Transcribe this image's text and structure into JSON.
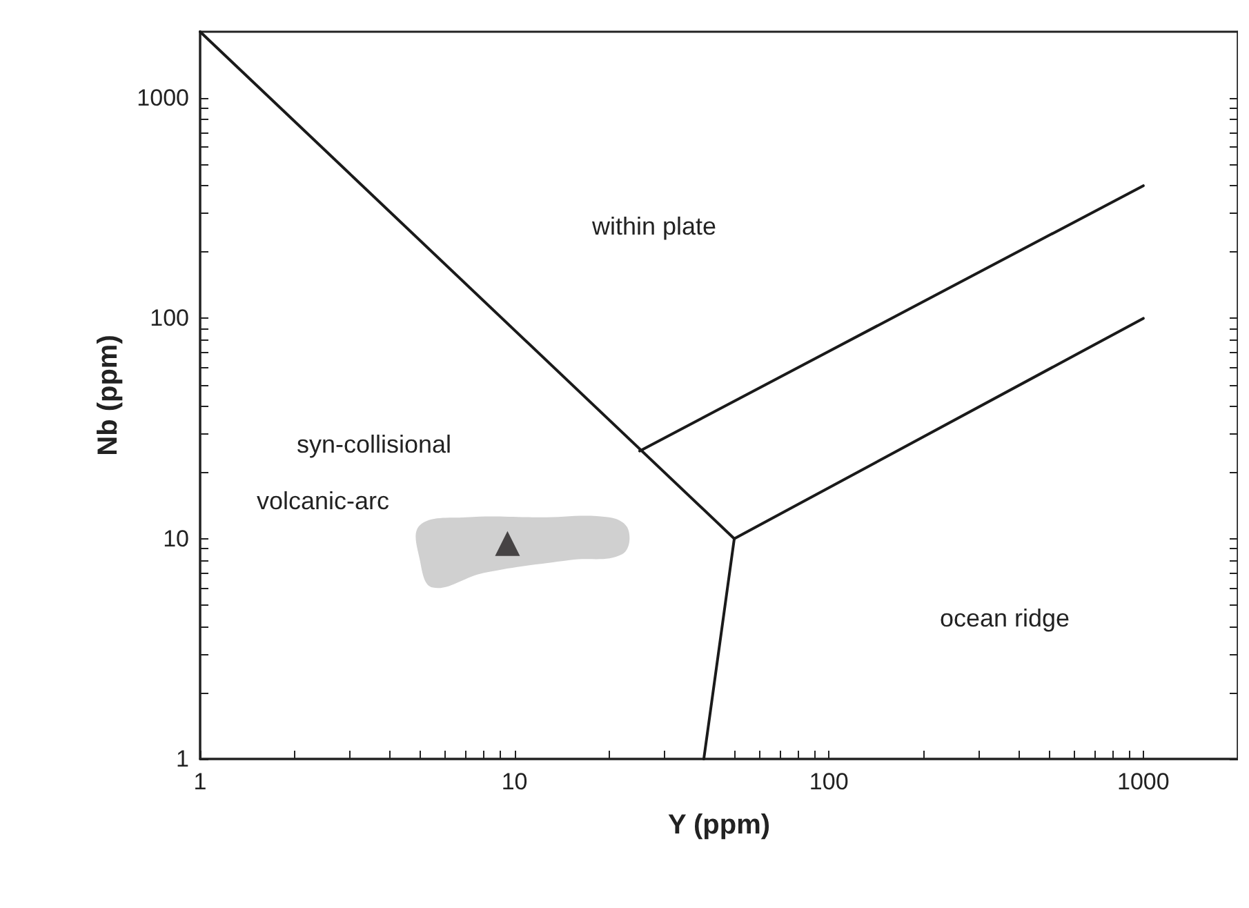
{
  "chart_data": {
    "type": "scatter",
    "xlabel": "Y (ppm)",
    "ylabel": "Nb (ppm)",
    "log": "xy",
    "grid": false,
    "xlim": [
      1,
      2000
    ],
    "ylim": [
      1,
      2000
    ],
    "xticks": [
      1,
      {
        "value": 2,
        "label": null
      },
      {
        "value": 3,
        "label": null
      },
      {
        "value": 4,
        "label": null
      },
      {
        "value": 5,
        "label": null
      },
      {
        "value": 6,
        "label": null
      },
      {
        "value": 7,
        "label": null
      },
      {
        "value": 8,
        "label": null
      },
      {
        "value": 9,
        "label": null
      },
      10,
      {
        "value": 20,
        "label": null
      },
      {
        "value": 30,
        "label": null
      },
      {
        "value": 40,
        "label": null
      },
      {
        "value": 50,
        "label": null
      },
      {
        "value": 60,
        "label": null
      },
      {
        "value": 70,
        "label": null
      },
      {
        "value": 80,
        "label": null
      },
      {
        "value": 90,
        "label": null
      },
      100,
      {
        "value": 200,
        "label": null
      },
      {
        "value": 300,
        "label": null
      },
      {
        "value": 400,
        "label": null
      },
      {
        "value": 500,
        "label": null
      },
      {
        "value": 600,
        "label": null
      },
      {
        "value": 700,
        "label": null
      },
      {
        "value": 800,
        "label": null
      },
      {
        "value": 900,
        "label": null
      },
      1000
    ],
    "yticks": [
      1,
      {
        "value": 2,
        "label": null
      },
      {
        "value": 3,
        "label": null
      },
      {
        "value": 4,
        "label": null
      },
      {
        "value": 5,
        "label": null
      },
      {
        "value": 6,
        "label": null
      },
      {
        "value": 7,
        "label": null
      },
      {
        "value": 8,
        "label": null
      },
      {
        "value": 9,
        "label": null
      },
      10,
      {
        "value": 20,
        "label": null
      },
      {
        "value": 30,
        "label": null
      },
      {
        "value": 40,
        "label": null
      },
      {
        "value": 50,
        "label": null
      },
      {
        "value": 60,
        "label": null
      },
      {
        "value": 70,
        "label": null
      },
      {
        "value": 80,
        "label": null
      },
      {
        "value": 90,
        "label": null
      },
      100,
      {
        "value": 200,
        "label": null
      },
      {
        "value": 300,
        "label": null
      },
      {
        "value": 400,
        "label": null
      },
      {
        "value": 500,
        "label": null
      },
      {
        "value": 600,
        "label": null
      },
      {
        "value": 700,
        "label": null
      },
      {
        "value": 800,
        "label": null
      },
      {
        "value": 900,
        "label": null
      },
      1000
    ],
    "series": [
      {
        "type": "area",
        "color": "#d0d0d0",
        "marker": "none",
        "x": [
          5,
          7,
          12,
          20,
          23,
          22,
          15,
          8,
          5.5,
          5
        ],
        "values": [
          11.5,
          12.5,
          12.5,
          12.5,
          11,
          8.5,
          8,
          7,
          6,
          8
        ]
      },
      {
        "type": "line",
        "color": "#1a1a1a",
        "marker": "none",
        "line_style": "solid",
        "x": [
          1,
          50
        ],
        "values": [
          2000,
          10
        ]
      },
      {
        "type": "line",
        "color": "#1a1a1a",
        "marker": "none",
        "line_style": "solid",
        "x": [
          50,
          1000
        ],
        "values": [
          10,
          100
        ]
      },
      {
        "type": "line",
        "color": "#1a1a1a",
        "marker": "none",
        "line_style": "solid",
        "x": [
          25,
          1000
        ],
        "values": [
          25,
          400
        ]
      },
      {
        "type": "line",
        "color": "#1a1a1a",
        "marker": "none",
        "line_style": "solid",
        "x": [
          50,
          40
        ],
        "values": [
          10,
          1
        ]
      },
      {
        "color": "#231f20",
        "marker": "triangle",
        "x": [
          9.5
        ],
        "values": [
          9.5
        ]
      }
    ],
    "annotations": [
      "within plate",
      "syn-collisional",
      "volcanic-arc",
      "ocean ridge"
    ]
  }
}
